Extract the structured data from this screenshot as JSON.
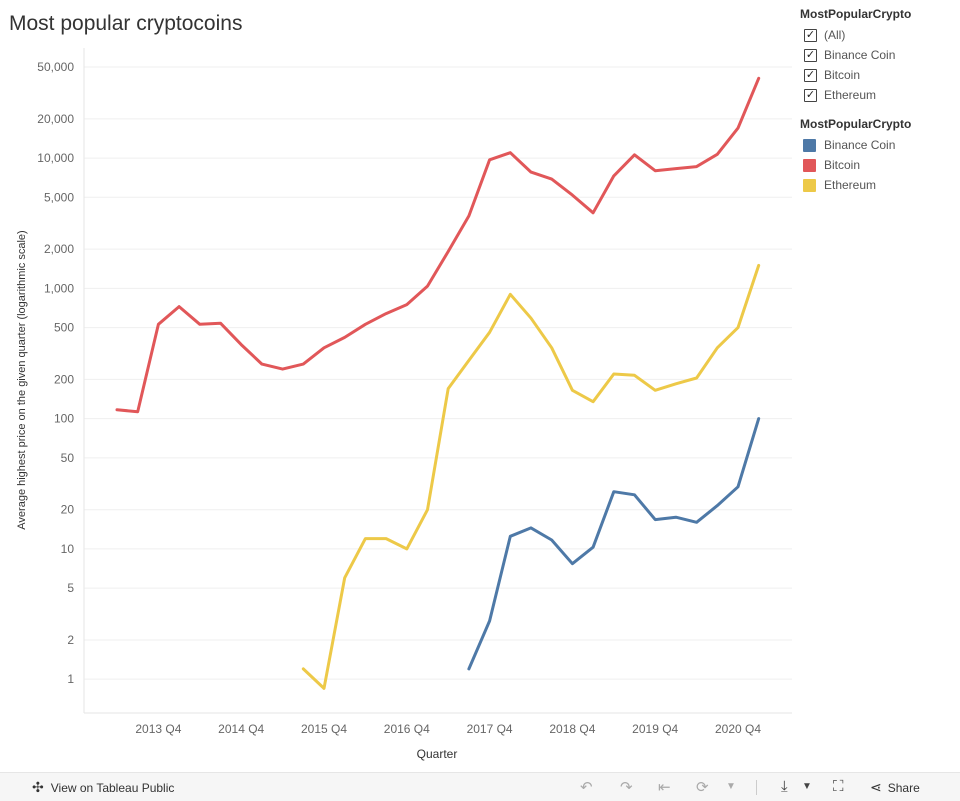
{
  "title": "Most popular cryptocoins",
  "filter": {
    "title": "MostPopularCrypto",
    "items": [
      {
        "label": "(All)",
        "checked": true
      },
      {
        "label": "Binance Coin",
        "checked": true
      },
      {
        "label": "Bitcoin",
        "checked": true
      },
      {
        "label": "Ethereum",
        "checked": true
      }
    ],
    "check_glyph": "✓"
  },
  "legend": {
    "title": "MostPopularCrypto",
    "items": [
      {
        "label": "Binance Coin",
        "color": "#4e79a7"
      },
      {
        "label": "Bitcoin",
        "color": "#e15759"
      },
      {
        "label": "Ethereum",
        "color": "#edc948"
      }
    ]
  },
  "chart_data": {
    "type": "line",
    "title": "Most popular cryptocoins",
    "xlabel": "Quarter",
    "ylabel": "Average highest price on the given quarter (logarithmic scale)",
    "y_scale": "log",
    "ylim": [
      0.55,
      70000
    ],
    "y_ticks": [
      1,
      2,
      5,
      10,
      20,
      50,
      100,
      200,
      500,
      1000,
      2000,
      5000,
      10000,
      20000,
      50000
    ],
    "y_tick_labels": [
      "1",
      "2",
      "5",
      "10",
      "20",
      "50",
      "100",
      "200",
      "500",
      "1,000",
      "2,000",
      "5,000",
      "10,000",
      "20,000",
      "50,000"
    ],
    "x": [
      "2013 Q2",
      "2013 Q3",
      "2013 Q4",
      "2014 Q1",
      "2014 Q2",
      "2014 Q3",
      "2014 Q4",
      "2015 Q1",
      "2015 Q2",
      "2015 Q3",
      "2015 Q4",
      "2016 Q1",
      "2016 Q2",
      "2016 Q3",
      "2016 Q4",
      "2017 Q1",
      "2017 Q2",
      "2017 Q3",
      "2017 Q4",
      "2018 Q1",
      "2018 Q2",
      "2018 Q3",
      "2018 Q4",
      "2019 Q1",
      "2019 Q2",
      "2019 Q3",
      "2019 Q4",
      "2020 Q1",
      "2020 Q2",
      "2020 Q3",
      "2020 Q4",
      "2021 Q1"
    ],
    "x_tick_labels": [
      "2013 Q4",
      "2014 Q4",
      "2015 Q4",
      "2016 Q4",
      "2017 Q4",
      "2018 Q4",
      "2019 Q4",
      "2020 Q4"
    ],
    "series": [
      {
        "name": "Binance Coin",
        "color": "#4e79a7",
        "values": [
          null,
          null,
          null,
          null,
          null,
          null,
          null,
          null,
          null,
          null,
          null,
          null,
          null,
          null,
          null,
          null,
          null,
          1.2,
          2.8,
          12.5,
          14.5,
          11.7,
          7.7,
          10.3,
          27.5,
          26,
          16.8,
          17.5,
          16,
          21.5,
          30,
          100
        ]
      },
      {
        "name": "Bitcoin",
        "color": "#e15759",
        "values": [
          117,
          113,
          530,
          725,
          530,
          540,
          370,
          262,
          240,
          262,
          350,
          420,
          530,
          640,
          750,
          1040,
          1920,
          3600,
          9700,
          11000,
          7800,
          6900,
          5200,
          3800,
          7300,
          10600,
          8000,
          8300,
          8600,
          10700,
          17000,
          41000
        ]
      },
      {
        "name": "Ethereum",
        "color": "#edc948",
        "values": [
          null,
          null,
          null,
          null,
          null,
          null,
          null,
          null,
          null,
          1.2,
          0.85,
          6,
          12,
          12,
          10,
          20,
          170,
          280,
          460,
          900,
          590,
          350,
          165,
          135,
          220,
          215,
          165,
          185,
          205,
          350,
          500,
          1500
        ]
      }
    ]
  },
  "toolbar": {
    "view_label": "View on Tableau Public",
    "share_label": "Share"
  }
}
